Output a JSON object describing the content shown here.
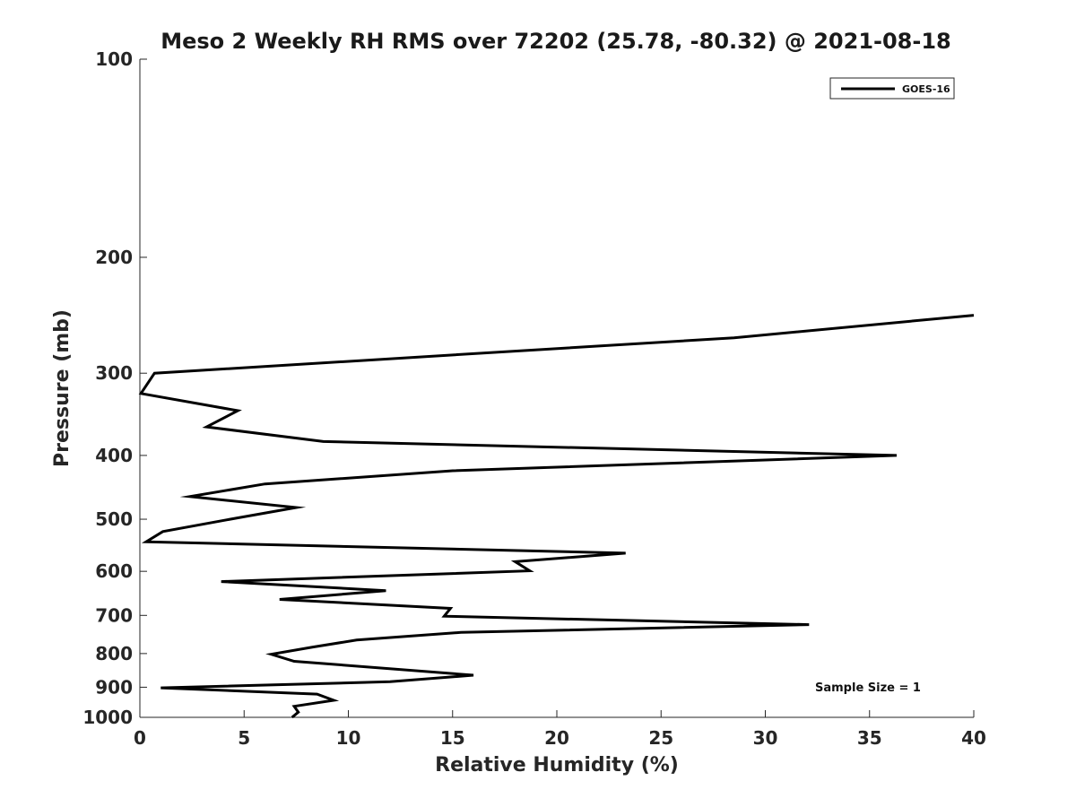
{
  "chart_data": {
    "type": "line",
    "title": "Meso 2 Weekly RH RMS over 72202 (25.78, -80.32) @ 2021-08-18",
    "xlabel": "Relative Humidity (%)",
    "ylabel": "Pressure (mb)",
    "xlim": [
      0,
      40
    ],
    "ylim": [
      100,
      1000
    ],
    "yscale": "log",
    "yreversed": true,
    "grid": false,
    "xticks": [
      0,
      5,
      10,
      15,
      20,
      25,
      30,
      35,
      40
    ],
    "yticks": [
      100,
      200,
      300,
      400,
      500,
      600,
      700,
      800,
      900,
      1000
    ],
    "legend_location": "top-right",
    "annotation": "Sample Size = 1",
    "series": [
      {
        "name": "GOES-16",
        "color": "#000000",
        "points": [
          {
            "rh": 40.0,
            "p": 245
          },
          {
            "rh": 28.5,
            "p": 265
          },
          {
            "rh": 0.7,
            "p": 300
          },
          {
            "rh": 0.05,
            "p": 322
          },
          {
            "rh": 4.7,
            "p": 342
          },
          {
            "rh": 3.2,
            "p": 362
          },
          {
            "rh": 8.8,
            "p": 381
          },
          {
            "rh": 36.3,
            "p": 400
          },
          {
            "rh": 15.0,
            "p": 422
          },
          {
            "rh": 6.0,
            "p": 442
          },
          {
            "rh": 2.4,
            "p": 462
          },
          {
            "rh": 7.5,
            "p": 480
          },
          {
            "rh": 4.8,
            "p": 497
          },
          {
            "rh": 1.1,
            "p": 522
          },
          {
            "rh": 0.3,
            "p": 541
          },
          {
            "rh": 23.3,
            "p": 563
          },
          {
            "rh": 18.0,
            "p": 580
          },
          {
            "rh": 18.7,
            "p": 599
          },
          {
            "rh": 3.9,
            "p": 622
          },
          {
            "rh": 11.8,
            "p": 642
          },
          {
            "rh": 6.7,
            "p": 662
          },
          {
            "rh": 14.9,
            "p": 683
          },
          {
            "rh": 14.6,
            "p": 702
          },
          {
            "rh": 32.1,
            "p": 723
          },
          {
            "rh": 15.4,
            "p": 743
          },
          {
            "rh": 10.4,
            "p": 763
          },
          {
            "rh": 8.3,
            "p": 782
          },
          {
            "rh": 6.3,
            "p": 802
          },
          {
            "rh": 7.4,
            "p": 822
          },
          {
            "rh": 16.0,
            "p": 863
          },
          {
            "rh": 12.0,
            "p": 883
          },
          {
            "rh": 1.0,
            "p": 902
          },
          {
            "rh": 8.5,
            "p": 922
          },
          {
            "rh": 9.3,
            "p": 942
          },
          {
            "rh": 7.4,
            "p": 962
          },
          {
            "rh": 7.6,
            "p": 982
          },
          {
            "rh": 7.3,
            "p": 1000
          }
        ]
      }
    ]
  }
}
